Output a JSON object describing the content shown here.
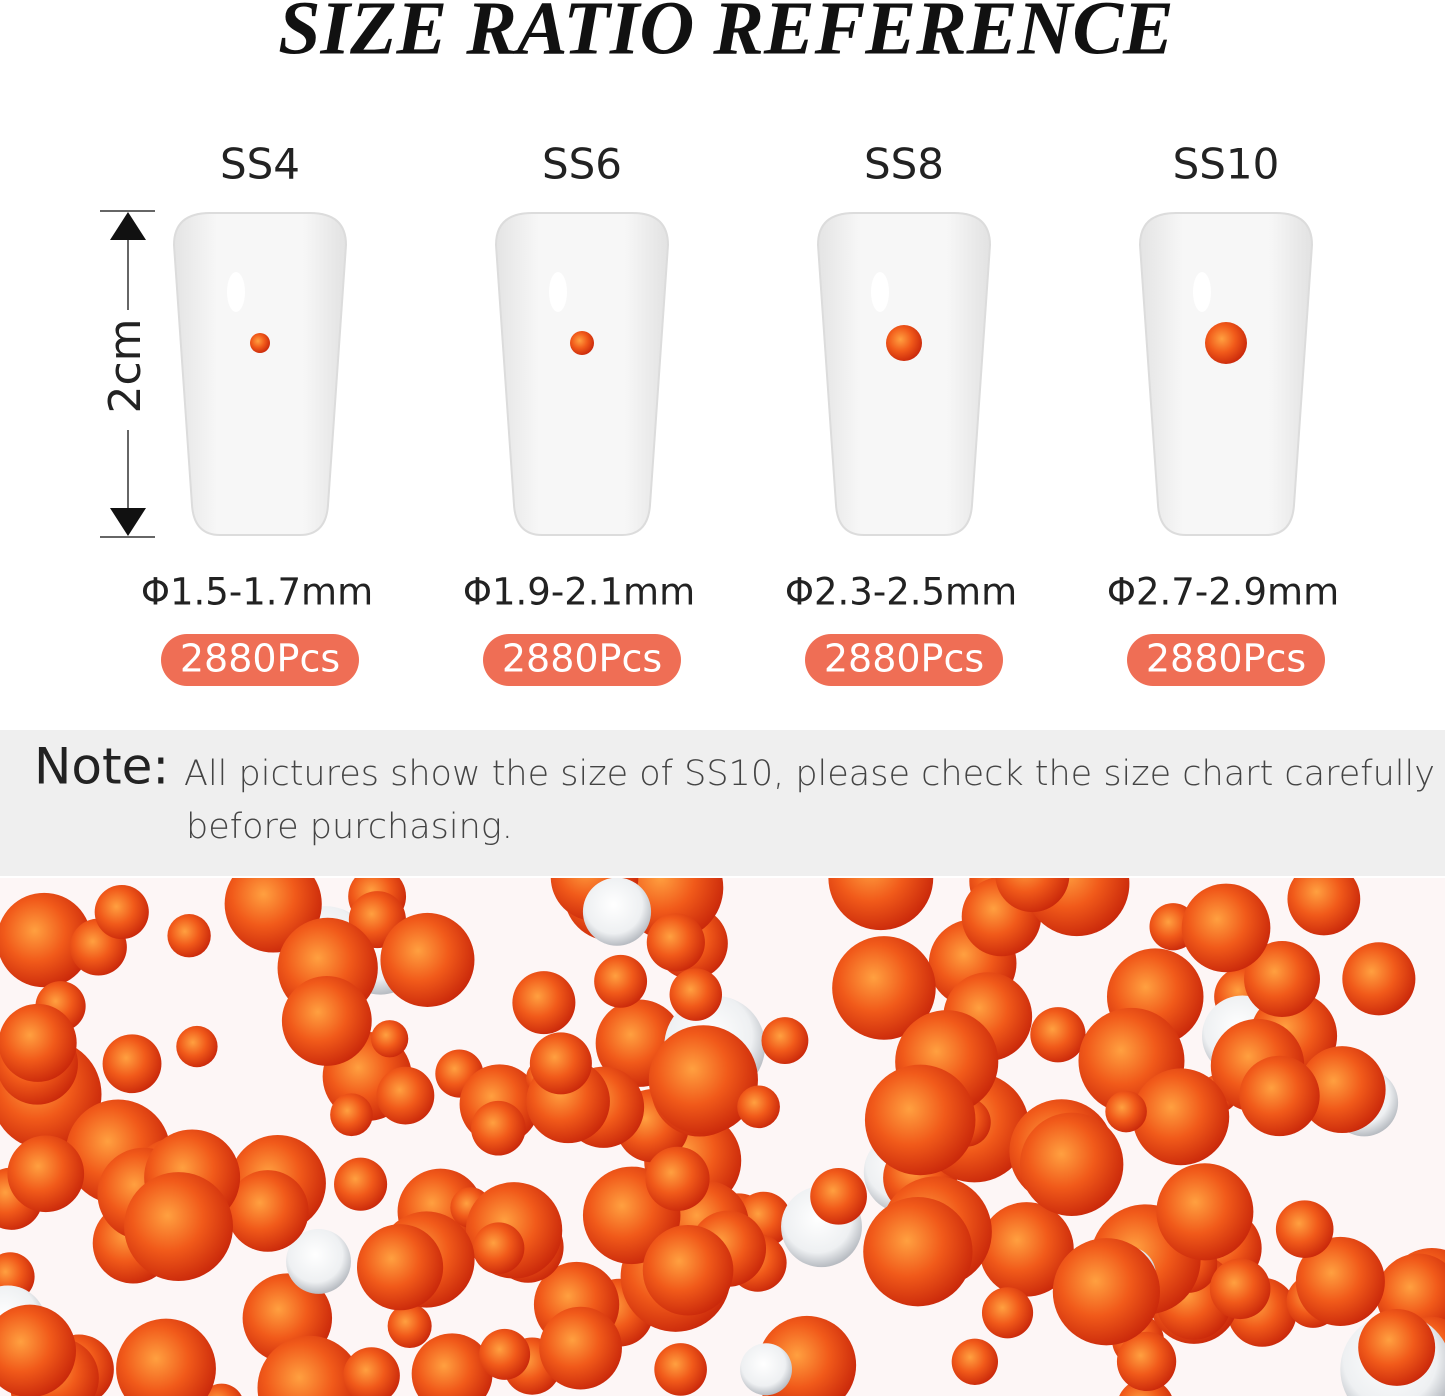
{
  "title": "SIZE RATIO REFERENCE",
  "scale_label": "2cm",
  "items": [
    {
      "size": "SS4",
      "diameter": "Φ1.5-1.7mm",
      "count": "2880Pcs"
    },
    {
      "size": "SS6",
      "diameter": "Φ1.9-2.1mm",
      "count": "2880Pcs"
    },
    {
      "size": "SS8",
      "diameter": "Φ2.3-2.5mm",
      "count": "2880Pcs"
    },
    {
      "size": "SS10",
      "diameter": "Φ2.7-2.9mm",
      "count": "2880Pcs"
    }
  ],
  "note": {
    "label": "Note:",
    "lines": [
      "All pictures show the size of SS10, please check the size chart carefully",
      "before purchasing."
    ]
  }
}
